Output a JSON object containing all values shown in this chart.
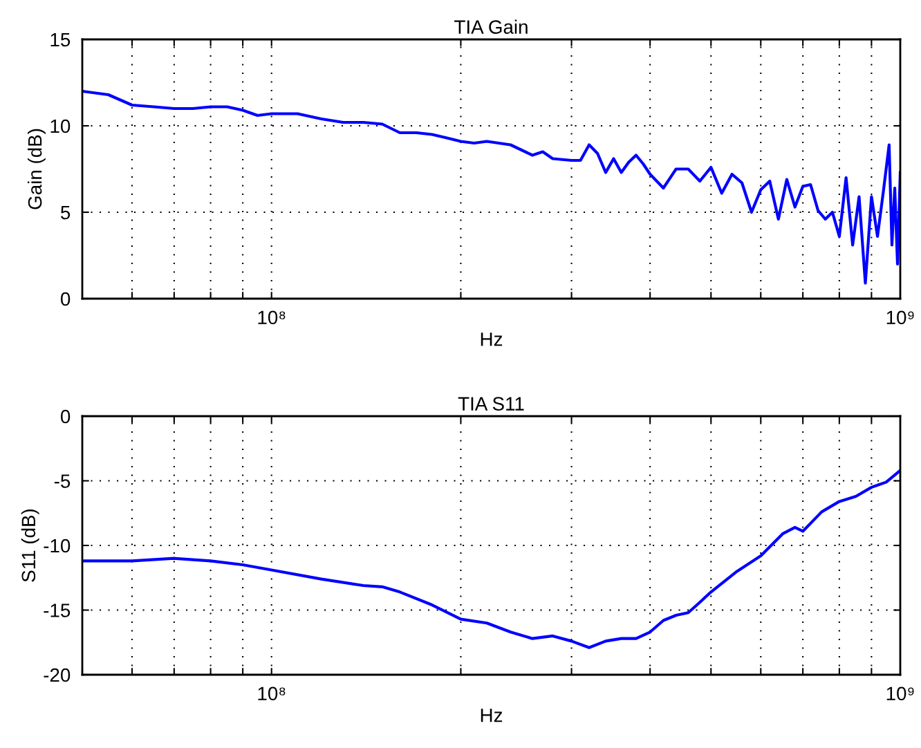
{
  "chart_data": [
    {
      "type": "line",
      "title": "TIA Gain",
      "xlabel": "Hz",
      "ylabel": "Gain (dB)",
      "log": "x",
      "grid": true,
      "xlim": [
        50000000,
        1000000000
      ],
      "ylim": [
        0,
        15
      ],
      "yticks": [
        0,
        5,
        10,
        15
      ],
      "xticks": [
        {
          "value": 50000000,
          "label": null
        },
        {
          "value": 60000000,
          "label": null
        },
        {
          "value": 70000000,
          "label": null
        },
        {
          "value": 80000000,
          "label": null
        },
        {
          "value": 90000000,
          "label": null
        },
        {
          "value": 100000000,
          "label": "10⁸"
        },
        {
          "value": 200000000,
          "label": null
        },
        {
          "value": 300000000,
          "label": null
        },
        {
          "value": 400000000,
          "label": null
        },
        {
          "value": 500000000,
          "label": null
        },
        {
          "value": 600000000,
          "label": null
        },
        {
          "value": 700000000,
          "label": null
        },
        {
          "value": 800000000,
          "label": null
        },
        {
          "value": 900000000,
          "label": null
        },
        {
          "value": 1000000000,
          "label": "10⁹"
        }
      ],
      "x": [
        50000000,
        55000000,
        60000000,
        65000000,
        70000000,
        75000000,
        80000000,
        85000000,
        90000000,
        95000000,
        100000000,
        110000000,
        120000000,
        130000000,
        140000000,
        150000000,
        160000000,
        170000000,
        180000000,
        190000000,
        200000000,
        210000000,
        220000000,
        240000000,
        260000000,
        270000000,
        280000000,
        300000000,
        310000000,
        320000000,
        330000000,
        340000000,
        350000000,
        360000000,
        370000000,
        380000000,
        390000000,
        400000000,
        420000000,
        440000000,
        460000000,
        480000000,
        500000000,
        520000000,
        540000000,
        560000000,
        580000000,
        600000000,
        620000000,
        640000000,
        660000000,
        680000000,
        700000000,
        720000000,
        740000000,
        760000000,
        780000000,
        800000000,
        820000000,
        840000000,
        860000000,
        880000000,
        900000000,
        920000000,
        940000000,
        960000000,
        970000000,
        980000000,
        990000000,
        1000000000
      ],
      "series": [
        {
          "color": "#0000ff",
          "values": [
            12.0,
            11.8,
            11.2,
            11.1,
            11.0,
            11.0,
            11.1,
            11.1,
            10.9,
            10.6,
            10.7,
            10.7,
            10.4,
            10.2,
            10.2,
            10.1,
            9.6,
            9.6,
            9.5,
            9.3,
            9.1,
            9.0,
            9.1,
            8.9,
            8.3,
            8.5,
            8.1,
            8.0,
            8.0,
            8.9,
            8.4,
            7.3,
            8.1,
            7.3,
            7.9,
            8.3,
            7.8,
            7.2,
            6.4,
            7.5,
            7.5,
            6.8,
            7.6,
            6.1,
            7.2,
            6.7,
            5.0,
            6.3,
            6.8,
            4.6,
            6.9,
            5.3,
            6.5,
            6.6,
            5.1,
            4.6,
            5.0,
            3.6,
            7.0,
            3.1,
            5.9,
            0.9,
            5.9,
            3.6,
            6.2,
            8.9,
            3.1,
            6.4,
            2.0,
            7.3
          ]
        }
      ]
    },
    {
      "type": "line",
      "title": "TIA S11",
      "xlabel": "Hz",
      "ylabel": "S11 (dB)",
      "log": "x",
      "grid": true,
      "xlim": [
        50000000,
        1000000000
      ],
      "ylim": [
        -20,
        0
      ],
      "yticks": [
        -20,
        -15,
        -10,
        -5,
        0
      ],
      "xticks": [
        {
          "value": 50000000,
          "label": null
        },
        {
          "value": 60000000,
          "label": null
        },
        {
          "value": 70000000,
          "label": null
        },
        {
          "value": 80000000,
          "label": null
        },
        {
          "value": 90000000,
          "label": null
        },
        {
          "value": 100000000,
          "label": "10⁸"
        },
        {
          "value": 200000000,
          "label": null
        },
        {
          "value": 300000000,
          "label": null
        },
        {
          "value": 400000000,
          "label": null
        },
        {
          "value": 500000000,
          "label": null
        },
        {
          "value": 600000000,
          "label": null
        },
        {
          "value": 700000000,
          "label": null
        },
        {
          "value": 800000000,
          "label": null
        },
        {
          "value": 900000000,
          "label": null
        },
        {
          "value": 1000000000,
          "label": "10⁹"
        }
      ],
      "x": [
        50000000,
        60000000,
        70000000,
        80000000,
        90000000,
        100000000,
        120000000,
        140000000,
        150000000,
        160000000,
        180000000,
        200000000,
        220000000,
        240000000,
        260000000,
        280000000,
        300000000,
        320000000,
        340000000,
        360000000,
        380000000,
        400000000,
        420000000,
        440000000,
        460000000,
        480000000,
        500000000,
        550000000,
        600000000,
        650000000,
        680000000,
        700000000,
        750000000,
        800000000,
        850000000,
        900000000,
        950000000,
        1000000000
      ],
      "series": [
        {
          "color": "#0000ff",
          "values": [
            -11.2,
            -11.2,
            -11.0,
            -11.2,
            -11.5,
            -11.9,
            -12.6,
            -13.1,
            -13.2,
            -13.6,
            -14.6,
            -15.7,
            -16.0,
            -16.7,
            -17.2,
            -17.0,
            -17.4,
            -17.9,
            -17.4,
            -17.2,
            -17.2,
            -16.7,
            -15.8,
            -15.4,
            -15.2,
            -14.4,
            -13.6,
            -12.0,
            -10.8,
            -9.1,
            -8.6,
            -8.9,
            -7.4,
            -6.6,
            -6.2,
            -5.5,
            -5.1,
            -4.2
          ]
        }
      ]
    }
  ]
}
